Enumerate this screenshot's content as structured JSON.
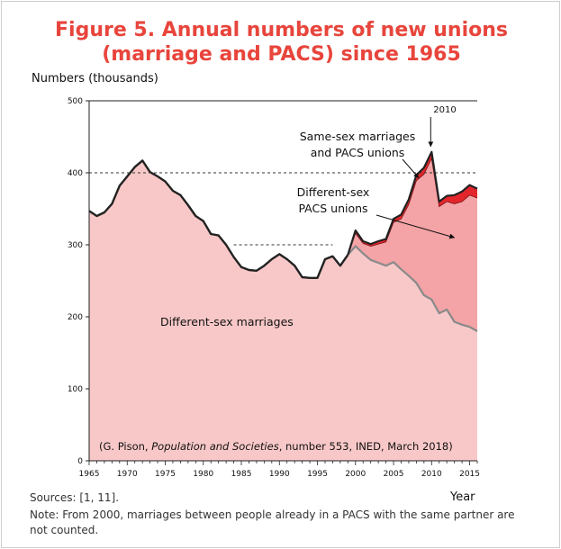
{
  "chart_data": {
    "type": "area",
    "title_line1": "Figure 5. Annual numbers of new unions",
    "title_line2": "(marriage and PACS) since 1965",
    "ylabel": "Numbers (thousands)",
    "xlabel": "Year",
    "ylim": [
      0,
      500
    ],
    "xlim": [
      1965,
      2016
    ],
    "yticks": [
      0,
      100,
      200,
      300,
      400,
      500
    ],
    "xticks": [
      1965,
      1970,
      1975,
      1980,
      1985,
      1990,
      1995,
      2000,
      2005,
      2010,
      2015
    ],
    "x": [
      1965,
      1966,
      1967,
      1968,
      1969,
      1970,
      1971,
      1972,
      1973,
      1974,
      1975,
      1976,
      1977,
      1978,
      1979,
      1980,
      1981,
      1982,
      1983,
      1984,
      1985,
      1986,
      1987,
      1988,
      1989,
      1990,
      1991,
      1992,
      1993,
      1994,
      1995,
      1996,
      1997,
      1998,
      1999,
      2000,
      2001,
      2002,
      2003,
      2004,
      2005,
      2006,
      2007,
      2008,
      2009,
      2010,
      2011,
      2012,
      2013,
      2014,
      2015,
      2016
    ],
    "series": [
      {
        "name": "Different-sex marriages",
        "color": "#f8c8c8",
        "line_color": "#222222",
        "values": [
          347,
          340,
          345,
          357,
          382,
          395,
          408,
          417,
          401,
          395,
          388,
          375,
          369,
          355,
          340,
          333,
          315,
          313,
          300,
          283,
          269,
          265,
          264,
          271,
          280,
          287,
          280,
          271,
          255,
          254,
          254,
          280,
          284,
          271,
          286,
          298,
          288,
          279,
          275,
          271,
          276,
          266,
          257,
          247,
          230,
          224,
          205,
          210,
          193,
          189,
          186,
          180
        ]
      },
      {
        "name": "Different-sex PACS unions",
        "color": "#f4a3a6",
        "values": [
          0,
          0,
          0,
          0,
          0,
          0,
          0,
          0,
          0,
          0,
          0,
          0,
          0,
          0,
          0,
          0,
          0,
          0,
          0,
          0,
          0,
          0,
          0,
          0,
          0,
          0,
          0,
          0,
          0,
          0,
          0,
          0,
          0,
          0,
          0,
          18,
          14,
          19,
          26,
          33,
          55,
          70,
          99,
          142,
          168,
          196,
          148,
          150,
          164,
          171,
          183,
          185
        ]
      },
      {
        "name": "Same-sex marriages and PACS unions",
        "color": "#e3262b",
        "values": [
          0,
          0,
          0,
          0,
          0,
          0,
          0,
          0,
          0,
          0,
          0,
          0,
          0,
          0,
          0,
          0,
          0,
          0,
          0,
          0,
          0,
          0,
          0,
          0,
          0,
          0,
          0,
          0,
          0,
          0,
          0,
          0,
          0,
          0,
          0,
          4,
          3,
          3,
          4,
          4,
          5,
          6,
          7,
          8,
          9,
          9,
          7,
          8,
          12,
          14,
          14,
          13
        ]
      }
    ],
    "dashed_lines": [
      400,
      300
    ],
    "annotations": {
      "year_2010": "2010",
      "same_sex_line1": "Same-sex marriages",
      "same_sex_line2": "and PACS unions",
      "pacs_line1": "Different-sex",
      "pacs_line2": "PACS unions",
      "marriages": "Different-sex marriages",
      "credit_prefix": "(G. Pison, ",
      "credit_italic": "Population and Societies",
      "credit_suffix": ", number 553, INED, March 2018)"
    }
  },
  "footer": {
    "sources": "Sources: [1, 11].",
    "note": "Note: From 2000, marriages between people already in a PACS with the same partner are not counted."
  }
}
